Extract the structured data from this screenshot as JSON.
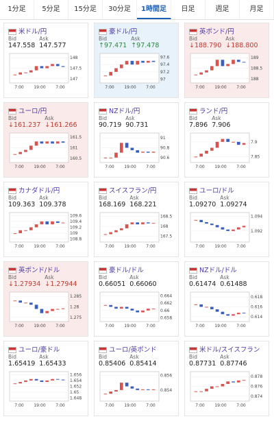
{
  "tabs": [
    "1分足",
    "5分足",
    "15分足",
    "30分足",
    "1時間足",
    "日足",
    "週足",
    "月足"
  ],
  "active_tab": 4,
  "bid_label": "Bid",
  "ask_label": "Ask",
  "cards": [
    {
      "name": "米ドル/円",
      "bid": "147.558",
      "ask": "147.577",
      "chart": {
        "ylim": [
          146.8,
          148.2
        ],
        "yticks": [
          148,
          147.5,
          147
        ],
        "xticks": [
          "7:00",
          "19:00",
          "7:00"
        ],
        "values": [
          147.2,
          147.3,
          147.3,
          147.4,
          147.6,
          147.5,
          147.6,
          147.7,
          147.6,
          147.56
        ]
      }
    },
    {
      "name": "豪ドル/円",
      "bid": "↑97.471",
      "ask": "↑97.478",
      "tint": "up",
      "chart": {
        "ylim": [
          96.9,
          97.7
        ],
        "yticks": [
          97.6,
          97.4,
          97.2,
          97
        ],
        "xticks": [
          "7:00",
          "19:00",
          "7:00"
        ],
        "values": [
          97.1,
          97.2,
          97.3,
          97.4,
          97.5,
          97.4,
          97.5,
          97.45,
          97.5,
          97.47
        ]
      }
    },
    {
      "name": "英ポンド/円",
      "bid": "↓188.790",
      "ask": "↓188.800",
      "tint": "down",
      "chart": {
        "ylim": [
          187.8,
          189.2
        ],
        "yticks": [
          189,
          188.5,
          188
        ],
        "xticks": [
          "7:00",
          "19:00",
          "7:00"
        ],
        "values": [
          188.2,
          188.3,
          188.4,
          188.6,
          188.9,
          188.6,
          188.7,
          188.9,
          188.8,
          188.79
        ]
      }
    },
    {
      "name": "ユーロ/円",
      "bid": "↓161.237",
      "ask": "↓161.266",
      "tint": "down",
      "chart": {
        "ylim": [
          160.3,
          161.7
        ],
        "yticks": [
          161.5,
          161,
          160.5
        ],
        "xticks": [
          "7:00",
          "19:00",
          "7:00"
        ],
        "values": [
          160.7,
          160.8,
          160.9,
          161.1,
          161.3,
          161.2,
          161.3,
          161.2,
          161.3,
          161.24
        ]
      }
    },
    {
      "name": "NZドル/円",
      "bid": "90.719",
      "ask": "90.731",
      "chart": {
        "ylim": [
          90.5,
          91.1
        ],
        "yticks": [
          91,
          90.8,
          90.6
        ],
        "xticks": [
          "7:00",
          "19:00",
          "7:00"
        ],
        "values": [
          90.6,
          90.6,
          90.7,
          90.9,
          90.8,
          90.75,
          90.7,
          90.72,
          90.7,
          90.72
        ]
      }
    },
    {
      "name": "ランド/円",
      "bid": "7.896",
      "ask": "7.906",
      "chart": {
        "ylim": [
          7.83,
          7.93
        ],
        "yticks": [
          7.9,
          7.85
        ],
        "xticks": [
          "7:00",
          "19:00",
          "7:00"
        ],
        "values": [
          7.85,
          7.86,
          7.87,
          7.88,
          7.9,
          7.91,
          7.9,
          7.9,
          7.89,
          7.896
        ]
      }
    },
    {
      "name": "カナダドル/円",
      "bid": "109.363",
      "ask": "109.378",
      "chart": {
        "ylim": [
          108.7,
          109.7
        ],
        "yticks": [
          109.6,
          109.4,
          109.2,
          109,
          108.8
        ],
        "xticks": [
          "7:00",
          "19:00",
          "7:00"
        ],
        "values": [
          109.0,
          109.1,
          109.1,
          109.2,
          109.3,
          109.4,
          109.3,
          109.4,
          109.35,
          109.36
        ]
      }
    },
    {
      "name": "スイスフラン/円",
      "bid": "168.169",
      "ask": "168.221",
      "chart": {
        "ylim": [
          167.2,
          168.7
        ],
        "yticks": [
          168.5,
          168,
          167.5
        ],
        "xticks": [
          "7:00",
          "19:00",
          "7:00"
        ],
        "values": [
          167.6,
          167.7,
          167.8,
          167.9,
          168.1,
          168.2,
          168.1,
          168.2,
          168.15,
          168.17
        ]
      }
    },
    {
      "name": "ユーロ/ドル",
      "bid": "1.09270",
      "ask": "1.09274",
      "chart": {
        "ylim": [
          1.0905,
          1.0945
        ],
        "yticks": [
          1.094,
          1.092
        ],
        "xticks": [
          "7:00",
          "19:00",
          "7:00"
        ],
        "values": [
          1.0935,
          1.0932,
          1.093,
          1.0928,
          1.0925,
          1.0922,
          1.092,
          1.0922,
          1.0925,
          1.0927
        ]
      }
    },
    {
      "name": "英ポンド/ドル",
      "bid": "↓1.27934",
      "ask": "↓1.27944",
      "tint": "down",
      "chart": {
        "ylim": [
          1.273,
          1.287
        ],
        "yticks": [
          1.285,
          1.28,
          1.275
        ],
        "xticks": [
          "7:00",
          "19:00",
          "7:00"
        ],
        "values": [
          1.283,
          1.282,
          1.282,
          1.281,
          1.279,
          1.277,
          1.278,
          1.279,
          1.279,
          1.2793
        ]
      }
    },
    {
      "name": "豪ドル/ドル",
      "bid": "0.66051",
      "ask": "0.66060",
      "chart": {
        "ylim": [
          0.657,
          0.665
        ],
        "yticks": [
          0.664,
          0.662,
          0.66,
          0.658
        ],
        "xticks": [
          "7:00",
          "19:00",
          "7:00"
        ],
        "values": [
          0.6615,
          0.661,
          0.6605,
          0.661,
          0.6605,
          0.66,
          0.6595,
          0.66,
          0.6605,
          0.6605
        ]
      }
    },
    {
      "name": "NZドル/ドル",
      "bid": "0.61474",
      "ask": "0.61488",
      "chart": {
        "ylim": [
          0.613,
          0.619
        ],
        "yticks": [
          0.618,
          0.616,
          0.614
        ],
        "xticks": [
          "7:00",
          "19:00",
          "7:00"
        ],
        "values": [
          0.6165,
          0.616,
          0.616,
          0.6155,
          0.615,
          0.6145,
          0.6142,
          0.6145,
          0.6148,
          0.6147
        ]
      }
    },
    {
      "name": "ユーロ/豪ドル",
      "bid": "1.65419",
      "ask": "1.65433",
      "chart": {
        "ylim": [
          1.647,
          1.657
        ],
        "yticks": [
          1.656,
          1.654,
          1.652,
          1.65,
          1.648
        ],
        "xticks": [
          "7:00",
          "19:00",
          "7:00"
        ],
        "values": [
          1.653,
          1.6535,
          1.654,
          1.6545,
          1.654,
          1.6535,
          1.654,
          1.6545,
          1.6543,
          1.6542
        ]
      }
    },
    {
      "name": "ユーロ/英ポンド",
      "bid": "0.85406",
      "ask": "0.85414",
      "chart": {
        "ylim": [
          0.8525,
          0.8565
        ],
        "yticks": [
          0.856,
          0.854
        ],
        "xticks": [
          "7:00",
          "19:00",
          "7:00"
        ],
        "values": [
          0.8535,
          0.8538,
          0.854,
          0.855,
          0.8545,
          0.8542,
          0.854,
          0.8541,
          0.854,
          0.8541
        ]
      }
    },
    {
      "name": "米ドル/スイスフラン",
      "bid": "0.87731",
      "ask": "0.87746",
      "chart": {
        "ylim": [
          0.873,
          0.879
        ],
        "yticks": [
          0.878,
          0.876,
          0.874
        ],
        "xticks": [
          "7:00",
          "19:00",
          "7:00"
        ],
        "values": [
          0.875,
          0.875,
          0.8755,
          0.876,
          0.876,
          0.8765,
          0.877,
          0.8768,
          0.8772,
          0.8773
        ]
      }
    }
  ]
}
